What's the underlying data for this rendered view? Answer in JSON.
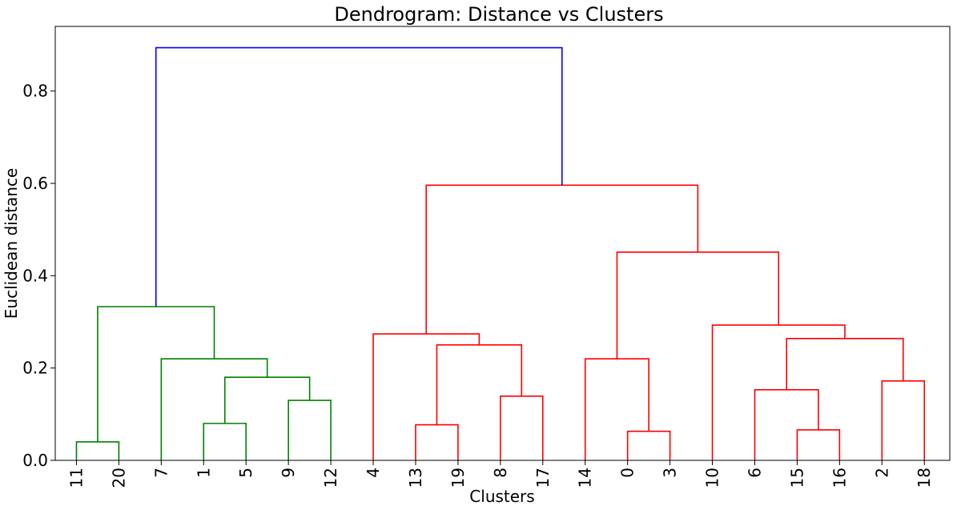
{
  "chart_data": {
    "type": "dendrogram",
    "title": "Dendrogram: Distance vs Clusters",
    "xlabel": "Clusters",
    "ylabel": "Euclidean distance",
    "ylim": [
      0,
      0.94
    ],
    "yticks": [
      0.0,
      0.2,
      0.4,
      0.6,
      0.8
    ],
    "ytick_labels": [
      "0.0",
      "0.2",
      "0.4",
      "0.6",
      "0.8"
    ],
    "grid": false,
    "legend": "none",
    "leaves": [
      "11",
      "20",
      "7",
      "1",
      "5",
      "9",
      "12",
      "4",
      "13",
      "19",
      "8",
      "17",
      "14",
      "0",
      "3",
      "10",
      "6",
      "15",
      "16",
      "2",
      "18"
    ],
    "colors": {
      "green": "#008000",
      "red": "#ff0000",
      "blue": "#0000ff"
    },
    "merges": [
      {
        "id": "m1",
        "left": "L0",
        "right": "L1",
        "height": 0.04,
        "color": "green"
      },
      {
        "id": "m2",
        "left": "L3",
        "right": "L4",
        "height": 0.08,
        "color": "green"
      },
      {
        "id": "m3",
        "left": "L5",
        "right": "L6",
        "height": 0.13,
        "color": "green"
      },
      {
        "id": "m4",
        "left": "m2",
        "right": "m3",
        "height": 0.18,
        "color": "green"
      },
      {
        "id": "m5",
        "left": "L2",
        "right": "m4",
        "height": 0.22,
        "color": "green"
      },
      {
        "id": "m6",
        "left": "m1",
        "right": "m5",
        "height": 0.333,
        "color": "green"
      },
      {
        "id": "m7",
        "left": "L8",
        "right": "L9",
        "height": 0.077,
        "color": "red"
      },
      {
        "id": "m8",
        "left": "L10",
        "right": "L11",
        "height": 0.139,
        "color": "red"
      },
      {
        "id": "m9",
        "left": "m7",
        "right": "m8",
        "height": 0.25,
        "color": "red"
      },
      {
        "id": "m10",
        "left": "L7",
        "right": "m9",
        "height": 0.274,
        "color": "red"
      },
      {
        "id": "m11",
        "left": "L13",
        "right": "L14",
        "height": 0.063,
        "color": "red"
      },
      {
        "id": "m12",
        "left": "L12",
        "right": "m11",
        "height": 0.22,
        "color": "red"
      },
      {
        "id": "m13",
        "left": "L17",
        "right": "L18",
        "height": 0.066,
        "color": "red"
      },
      {
        "id": "m14",
        "left": "L16",
        "right": "m13",
        "height": 0.153,
        "color": "red"
      },
      {
        "id": "m15",
        "left": "L19",
        "right": "L20",
        "height": 0.172,
        "color": "red"
      },
      {
        "id": "m16",
        "left": "m14",
        "right": "m15",
        "height": 0.264,
        "color": "red"
      },
      {
        "id": "m17",
        "left": "L15",
        "right": "m16",
        "height": 0.293,
        "color": "red"
      },
      {
        "id": "m18",
        "left": "m12",
        "right": "m17",
        "height": 0.451,
        "color": "red"
      },
      {
        "id": "m19",
        "left": "m10",
        "right": "m18",
        "height": 0.596,
        "color": "red"
      },
      {
        "id": "m20",
        "left": "m6",
        "right": "m19",
        "height": 0.894,
        "color": "blue"
      }
    ]
  }
}
